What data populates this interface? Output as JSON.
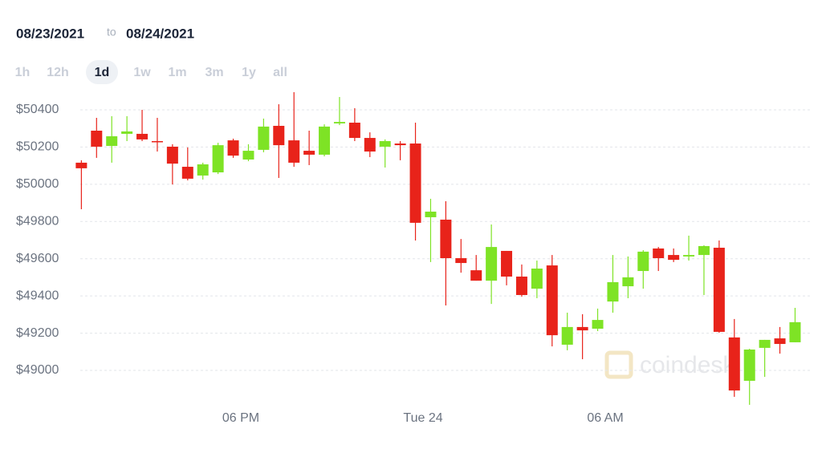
{
  "header": {
    "from": "08/23/2021",
    "to_word": "to",
    "to": "08/24/2021"
  },
  "ranges": {
    "items": [
      "1h",
      "12h",
      "1d",
      "1w",
      "1m",
      "3m",
      "1y",
      "all"
    ],
    "selected": 2
  },
  "chart_data": {
    "type": "candlestick",
    "watermark": "coindesk",
    "up_color": "#7ee325",
    "down_color": "#e8231a",
    "grid": true,
    "x": [
      12.75,
      13.25,
      13.75,
      14.25,
      14.75,
      15.25,
      15.75,
      16.25,
      16.75,
      17.25,
      17.75,
      18.25,
      18.75,
      19.25,
      19.75,
      20.25,
      20.75,
      21.25,
      21.75,
      22.25,
      22.75,
      23.25,
      23.75,
      24.25,
      24.75,
      25.25,
      25.75,
      26.25,
      26.75,
      27.25,
      27.75,
      28.25,
      28.75,
      29.25,
      29.75,
      30.25,
      30.75,
      31.25,
      31.75,
      32.25,
      32.75,
      33.25,
      33.75,
      34.25,
      34.75,
      35.25,
      35.75,
      36.25
    ],
    "open": [
      50116,
      50288,
      50206,
      50271,
      50271,
      50232,
      50202,
      50094,
      50047,
      50064,
      50236,
      50133,
      50185,
      50314,
      50236,
      50180,
      50159,
      50327,
      50331,
      50249,
      50202,
      50219,
      50219,
      49823,
      49810,
      49603,
      49538,
      49482,
      49642,
      49504,
      49439,
      49564,
      49138,
      49233,
      49224,
      49370,
      49452,
      49534,
      49655,
      49620,
      49612,
      49620,
      49659,
      49177,
      48944,
      49121,
      49172,
      49151
    ],
    "high": [
      50129,
      50357,
      50366,
      50366,
      50400,
      50357,
      50215,
      50198,
      50116,
      50223,
      50245,
      50215,
      50353,
      50430,
      50495,
      50288,
      50322,
      50469,
      50409,
      50279,
      50241,
      50232,
      50331,
      49922,
      49909,
      49706,
      49620,
      49784,
      49642,
      49569,
      49590,
      49620,
      49310,
      49302,
      49332,
      49620,
      49612,
      49646,
      49663,
      49655,
      49724,
      49672,
      49698,
      49276,
      49116,
      49164,
      49233,
      49336
    ],
    "low": [
      49866,
      50142,
      50116,
      50232,
      50232,
      50176,
      49999,
      50021,
      50025,
      50055,
      50142,
      50124,
      50172,
      50034,
      50094,
      50103,
      50150,
      50318,
      50232,
      50146,
      50090,
      50129,
      49698,
      49582,
      49349,
      49525,
      49482,
      49357,
      49457,
      49396,
      49388,
      49129,
      49108,
      49060,
      49211,
      49310,
      49388,
      49439,
      49534,
      49582,
      49590,
      49405,
      49202,
      48858,
      48815,
      48965,
      49090,
      49151
    ],
    "close": [
      50086,
      50202,
      50258,
      50284,
      50241,
      50228,
      50111,
      50030,
      50107,
      50210,
      50154,
      50180,
      50310,
      50210,
      50116,
      50159,
      50310,
      50335,
      50249,
      50176,
      50232,
      50210,
      49793,
      49853,
      49603,
      49577,
      49482,
      49663,
      49504,
      49405,
      49547,
      49189,
      49233,
      49215,
      49271,
      49474,
      49500,
      49638,
      49603,
      49594,
      49620,
      49668,
      49207,
      48892,
      49112,
      49164,
      49142,
      49259
    ],
    "xlim": [
      12.2,
      36.8
    ],
    "ylim": [
      48800,
      50500
    ],
    "xticks": [
      {
        "value": 18,
        "label": "06 PM"
      },
      {
        "value": 24,
        "label": "Tue 24"
      },
      {
        "value": 30,
        "label": "06 AM"
      }
    ],
    "yticks": [
      {
        "value": 49000,
        "label": "$49000"
      },
      {
        "value": 49200,
        "label": "$49200"
      },
      {
        "value": 49400,
        "label": "$49400"
      },
      {
        "value": 49600,
        "label": "$49600"
      },
      {
        "value": 49800,
        "label": "$49800"
      },
      {
        "value": 50000,
        "label": "$50000"
      },
      {
        "value": 50200,
        "label": "$50200"
      },
      {
        "value": 50400,
        "label": "$50400"
      }
    ]
  }
}
